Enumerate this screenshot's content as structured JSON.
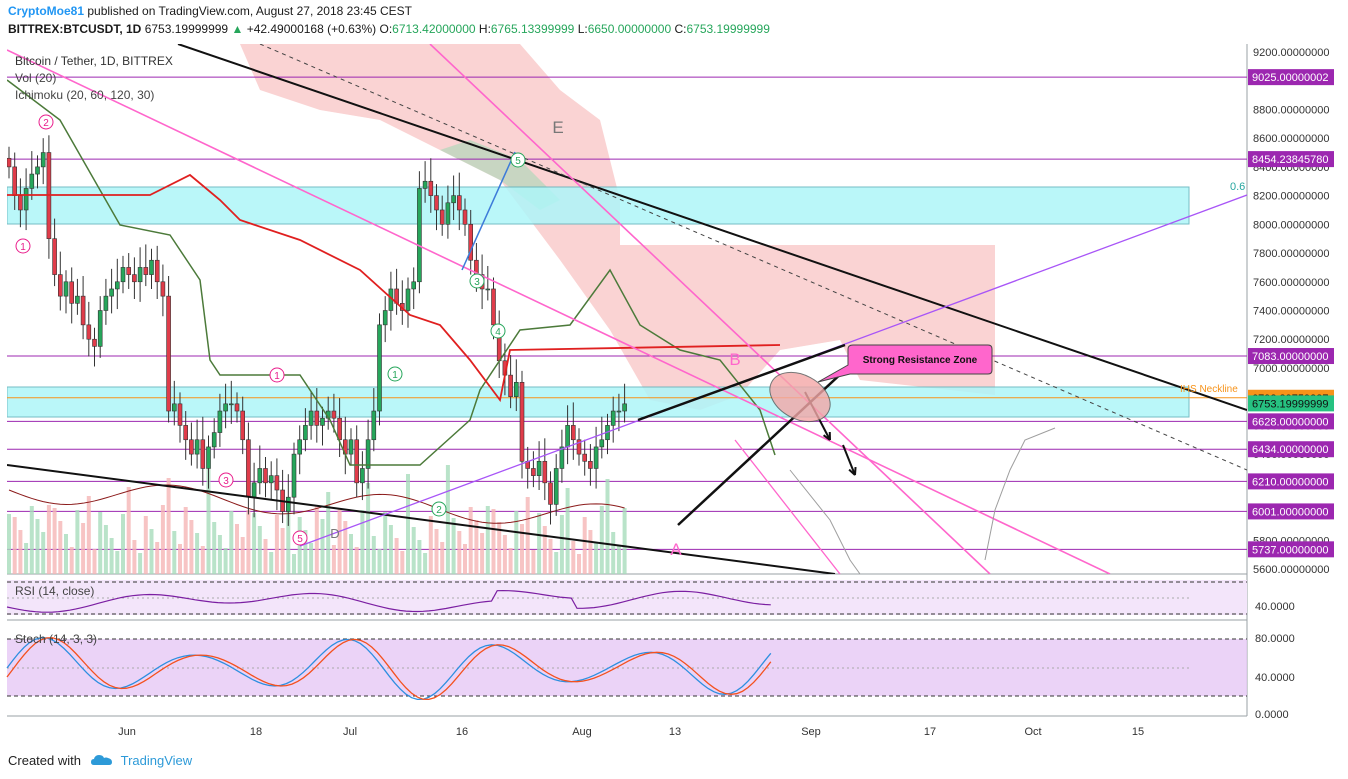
{
  "header": {
    "author": "CryptoMoe81",
    "published_text": " published on TradingView.com, August 27, 2018 23:45 CEST",
    "symbol": "BITTREX:BTCUSDT, 1D",
    "last": "6753.19999999",
    "change": "+42.49000168 (+0.63%)",
    "open_label": "O:",
    "open": "6713.42000000",
    "high_label": "H:",
    "high": "6765.13399999",
    "low_label": "L:",
    "low": "6650.00000000",
    "close_label": "C:",
    "close": "6753.19999999"
  },
  "legend": {
    "title": "Bitcoin / Tether, 1D, BITTREX",
    "vol": "Vol (20)",
    "ichimoku": "Ichimoku (20, 60, 120, 30)",
    "rsi": "RSI (14, close)",
    "stoch": "Stoch (14, 3, 3)"
  },
  "annotations": {
    "resistance_zone": "Strong Resistance Zone",
    "neckline": "IHS Neckline",
    "fib": "0.6",
    "wave_E": "E",
    "wave_B": "B",
    "wave_A": "A",
    "wave_D": "D",
    "circled": [
      "1",
      "2",
      "3",
      "4",
      "5"
    ]
  },
  "price_axis": {
    "ticks": [
      "9200.00000000",
      "9000.00000000",
      "8800.00000000",
      "8600.00000000",
      "8400.00000000",
      "8200.00000000",
      "8000.00000000",
      "7800.00000000",
      "7600.00000000",
      "7400.00000000",
      "7200.00000000",
      "7000.00000000",
      "6800.00000000",
      "6600.00000000",
      "6400.00000000",
      "6200.00000000",
      "6000.00000000",
      "5800.00000000",
      "5600.00000000"
    ],
    "highlighted": [
      {
        "label": "9025.00000002",
        "color": "#9c27b0"
      },
      {
        "label": "8454.23845780",
        "color": "#9c27b0"
      },
      {
        "label": "7083.00000000",
        "color": "#9c27b0"
      },
      {
        "label": "6792.39759337",
        "color": "#f7931a"
      },
      {
        "label": "6753.19999999",
        "color": "#26c281"
      },
      {
        "label": "6628.00000000",
        "color": "#9c27b0"
      },
      {
        "label": "6434.00000000",
        "color": "#9c27b0"
      },
      {
        "label": "6210.00000000",
        "color": "#9c27b0"
      },
      {
        "label": "6001.00000000",
        "color": "#9c27b0"
      },
      {
        "label": "5737.00000000",
        "color": "#9c27b0"
      }
    ]
  },
  "rsi_axis": {
    "ticks": [
      "40.0000"
    ]
  },
  "stoch_axis": {
    "ticks": [
      "80.0000",
      "40.0000",
      "0.0000"
    ]
  },
  "time_axis": {
    "ticks": [
      "Jun",
      "18",
      "Jul",
      "16",
      "Aug",
      "13",
      "Sep",
      "17",
      "Oct",
      "15"
    ]
  },
  "footer": {
    "created": "Created with",
    "brand": "TradingView"
  },
  "chart_data": {
    "type": "candlestick",
    "title": "Bitcoin / Tether, 1D, BITTREX",
    "ylim": [
      5550,
      9300
    ],
    "levels": [
      9025.00000002,
      8454.2384578,
      7083,
      6792.39759337,
      6753.19999999,
      6628,
      6434,
      6210,
      6001,
      5737
    ],
    "closes_approx": [
      8400,
      8200,
      8100,
      8250,
      8350,
      8400,
      8500,
      7900,
      7650,
      7500,
      7600,
      7450,
      7500,
      7300,
      7200,
      7150,
      7400,
      7500,
      7550,
      7600,
      7700,
      7650,
      7600,
      7700,
      7650,
      7750,
      7600,
      7500,
      6700,
      6750,
      6600,
      6500,
      6400,
      6500,
      6300,
      6450,
      6550,
      6700,
      6750,
      6750,
      6700,
      6500,
      6100,
      6200,
      6300,
      6200,
      6250,
      6150,
      6000,
      6100,
      6400,
      6500,
      6600,
      6700,
      6600,
      6650,
      6700,
      6650,
      6500,
      6400,
      6500,
      6200,
      6300,
      6500,
      6700,
      7300,
      7400,
      7550,
      7450,
      7400,
      7550,
      7600,
      8250,
      8300,
      8200,
      8100,
      8000,
      8150,
      8200,
      8100,
      8000,
      7750,
      7650,
      7550,
      7550,
      7300,
      7050,
      6950,
      6800,
      6900,
      6350,
      6300,
      6250,
      6350,
      6200,
      6050,
      6300,
      6450,
      6600,
      6500,
      6400,
      6350,
      6300,
      6450,
      6500,
      6600,
      6700,
      6700,
      6750
    ]
  }
}
